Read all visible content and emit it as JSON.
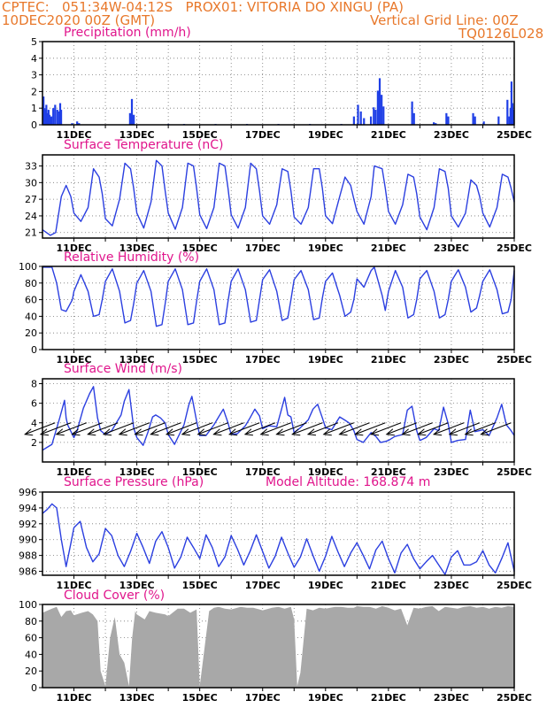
{
  "header": {
    "line1": "CPTEC:   051:34W-04:12S   PROX01: VITORIA DO XINGU (PA)",
    "line2": "10DEC2020 00Z (GMT)",
    "grid_note": "Vertical Grid Line: 00Z",
    "code": "TQ0126L028"
  },
  "colors": {
    "line": "#2b3fe0",
    "bar": "#1f3fe6",
    "cloud": "#a8a8a8",
    "title": "#e0158c",
    "header": "#e8782b"
  },
  "x_ticks": [
    "11DEC",
    "13DEC",
    "15DEC",
    "17DEC",
    "19DEC",
    "21DEC",
    "23DEC",
    "25DEC"
  ],
  "chart_data": [
    {
      "type": "bar",
      "title": "Precipitation (mm/h)",
      "ylim": [
        0,
        5
      ],
      "yticks": [
        "0",
        "1",
        "2",
        "3",
        "4",
        "5"
      ],
      "x_unit": "days since 10DEC 00Z",
      "points": [
        [
          0.03,
          1.7
        ],
        [
          0.06,
          1.0
        ],
        [
          0.09,
          0.9
        ],
        [
          0.12,
          1.2
        ],
        [
          0.16,
          0.7
        ],
        [
          0.19,
          0.9
        ],
        [
          0.22,
          0.6
        ],
        [
          0.28,
          0.5
        ],
        [
          0.34,
          1.0
        ],
        [
          0.4,
          1.2
        ],
        [
          0.47,
          0.9
        ],
        [
          0.53,
          0.8
        ],
        [
          0.56,
          1.3
        ],
        [
          0.59,
          0.9
        ],
        [
          0.94,
          0.1
        ],
        [
          1.1,
          0.2
        ],
        [
          1.16,
          0.1
        ],
        [
          2.78,
          0.7
        ],
        [
          2.84,
          1.55
        ],
        [
          2.9,
          0.6
        ],
        [
          4.0,
          0.05
        ],
        [
          4.5,
          0.05
        ],
        [
          5.5,
          0.05
        ],
        [
          6.5,
          0.05
        ],
        [
          7.5,
          0.05
        ],
        [
          8.5,
          0.05
        ],
        [
          9.5,
          0.05
        ],
        [
          9.9,
          0.5
        ],
        [
          10.03,
          1.2
        ],
        [
          10.12,
          0.8
        ],
        [
          10.22,
          0.4
        ],
        [
          10.44,
          0.5
        ],
        [
          10.53,
          1.05
        ],
        [
          10.59,
          0.9
        ],
        [
          10.66,
          2.05
        ],
        [
          10.72,
          2.8
        ],
        [
          10.78,
          1.8
        ],
        [
          10.84,
          1.1
        ],
        [
          11.75,
          1.4
        ],
        [
          11.81,
          0.7
        ],
        [
          12.44,
          0.15
        ],
        [
          12.5,
          0.1
        ],
        [
          12.84,
          0.7
        ],
        [
          12.9,
          0.5
        ],
        [
          13.69,
          0.7
        ],
        [
          13.75,
          0.5
        ],
        [
          14.03,
          0.2
        ],
        [
          14.5,
          0.5
        ],
        [
          14.78,
          1.5
        ],
        [
          14.84,
          0.5
        ],
        [
          14.88,
          1.0
        ],
        [
          14.91,
          2.6
        ],
        [
          14.94,
          1.3
        ],
        [
          14.97,
          0.9
        ]
      ]
    },
    {
      "type": "line",
      "title": "Surface Temperature (nC)",
      "ylim": [
        20,
        35
      ],
      "yticks": [
        "21",
        "24",
        "27",
        "30",
        "33"
      ],
      "x": [
        0,
        0.25,
        0.42,
        0.6,
        0.75,
        0.9,
        1.0,
        1.22,
        1.45,
        1.62,
        1.8,
        1.9,
        2.0,
        2.22,
        2.45,
        2.62,
        2.8,
        2.9,
        3.0,
        3.22,
        3.45,
        3.62,
        3.8,
        3.9,
        4.0,
        4.22,
        4.45,
        4.62,
        4.8,
        4.9,
        5.0,
        5.22,
        5.45,
        5.62,
        5.8,
        5.9,
        6.0,
        6.22,
        6.45,
        6.62,
        6.8,
        6.9,
        7.0,
        7.22,
        7.45,
        7.62,
        7.8,
        7.9,
        8.0,
        8.22,
        8.45,
        8.62,
        8.8,
        8.9,
        9.0,
        9.22,
        9.45,
        9.62,
        9.8,
        9.9,
        10.0,
        10.22,
        10.45,
        10.55,
        10.8,
        10.9,
        11.0,
        11.22,
        11.45,
        11.62,
        11.8,
        11.9,
        12.0,
        12.22,
        12.45,
        12.62,
        12.8,
        12.9,
        13.0,
        13.22,
        13.45,
        13.62,
        13.8,
        13.9,
        14.0,
        14.22,
        14.45,
        14.62,
        14.8,
        14.9,
        15.0
      ],
      "y": [
        21.5,
        20.5,
        21.0,
        27.5,
        29.5,
        27.5,
        24.5,
        23.0,
        25.5,
        32.5,
        31.0,
        28.0,
        23.5,
        22.2,
        27.0,
        33.5,
        32.5,
        29.0,
        24.5,
        21.8,
        26.5,
        34.0,
        33.0,
        28.5,
        24.5,
        21.6,
        25.5,
        33.5,
        33.0,
        29.0,
        24.2,
        21.7,
        25.5,
        33.5,
        33.0,
        29.0,
        24.2,
        21.8,
        25.5,
        33.5,
        32.5,
        28.5,
        24.0,
        22.5,
        26.0,
        32.5,
        32.0,
        28.5,
        23.8,
        22.5,
        25.5,
        32.5,
        32.5,
        29.0,
        24.0,
        22.6,
        27.5,
        31.0,
        29.5,
        27.0,
        24.8,
        22.5,
        27.5,
        33.0,
        32.5,
        29.0,
        24.8,
        22.5,
        26.0,
        31.5,
        31.0,
        28.0,
        23.8,
        21.5,
        25.5,
        32.5,
        32.0,
        29.0,
        24.0,
        22.0,
        24.5,
        30.5,
        29.5,
        27.5,
        24.5,
        22.0,
        25.5,
        31.5,
        31.0,
        29.0,
        26.5
      ]
    },
    {
      "type": "line",
      "title": "Relative Humidity (%)",
      "ylim": [
        0,
        100
      ],
      "yticks": [
        "0",
        "20",
        "40",
        "60",
        "80",
        "100"
      ],
      "x": [
        0,
        0.3,
        0.45,
        0.6,
        0.75,
        0.95,
        1.0,
        1.22,
        1.45,
        1.62,
        1.8,
        1.9,
        2.0,
        2.22,
        2.45,
        2.62,
        2.8,
        2.9,
        3.0,
        3.22,
        3.45,
        3.62,
        3.8,
        3.9,
        4.0,
        4.22,
        4.45,
        4.62,
        4.8,
        4.9,
        5.0,
        5.22,
        5.45,
        5.62,
        5.8,
        5.9,
        6.0,
        6.22,
        6.45,
        6.62,
        6.8,
        6.9,
        7.0,
        7.22,
        7.45,
        7.62,
        7.8,
        7.9,
        8.0,
        8.22,
        8.45,
        8.62,
        8.8,
        8.9,
        9.0,
        9.22,
        9.45,
        9.62,
        9.8,
        9.9,
        10.0,
        10.22,
        10.45,
        10.55,
        10.8,
        10.9,
        11.0,
        11.22,
        11.45,
        11.62,
        11.8,
        11.9,
        12.0,
        12.22,
        12.45,
        12.62,
        12.8,
        12.9,
        13.0,
        13.22,
        13.45,
        13.62,
        13.8,
        13.9,
        14.0,
        14.22,
        14.45,
        14.62,
        14.8,
        14.9,
        15.0
      ],
      "y": [
        99,
        99,
        80,
        48,
        46,
        60,
        70,
        90,
        70,
        40,
        42,
        60,
        82,
        97,
        70,
        32,
        35,
        55,
        80,
        95,
        70,
        28,
        30,
        55,
        82,
        97,
        72,
        30,
        32,
        58,
        82,
        97,
        72,
        30,
        32,
        58,
        82,
        97,
        72,
        33,
        35,
        60,
        84,
        96,
        70,
        35,
        38,
        60,
        84,
        95,
        72,
        36,
        38,
        62,
        82,
        92,
        65,
        40,
        45,
        60,
        85,
        75,
        95,
        99,
        65,
        47,
        70,
        95,
        75,
        38,
        42,
        60,
        85,
        95,
        70,
        38,
        42,
        60,
        82,
        96,
        75,
        45,
        50,
        65,
        82,
        96,
        72,
        43,
        45,
        60,
        95
      ]
    },
    {
      "type": "line",
      "title": "Surface Wind (m/s)",
      "ylim": [
        0,
        8.5
      ],
      "yticks": [
        "2",
        "4",
        "6",
        "8"
      ],
      "x": [
        0,
        0.15,
        0.3,
        0.55,
        0.7,
        0.75,
        0.8,
        1.0,
        1.1,
        1.3,
        1.5,
        1.62,
        1.75,
        1.85,
        2.0,
        2.2,
        2.5,
        2.6,
        2.75,
        2.9,
        3.0,
        3.2,
        3.35,
        3.5,
        3.6,
        3.75,
        3.9,
        4.0,
        4.2,
        4.5,
        4.65,
        4.75,
        4.9,
        5.0,
        5.2,
        5.45,
        5.6,
        5.75,
        5.9,
        6.0,
        6.2,
        6.45,
        6.6,
        6.75,
        6.9,
        7.0,
        7.2,
        7.45,
        7.6,
        7.7,
        7.8,
        7.9,
        8.0,
        8.2,
        8.45,
        8.6,
        8.75,
        8.9,
        9.0,
        9.2,
        9.45,
        9.6,
        9.75,
        9.9,
        10.0,
        10.2,
        10.45,
        10.6,
        10.75,
        10.9,
        11.0,
        11.2,
        11.45,
        11.6,
        11.75,
        11.9,
        12.0,
        12.2,
        12.45,
        12.6,
        12.75,
        12.9,
        13.0,
        13.2,
        13.45,
        13.6,
        13.75,
        13.9,
        14.0,
        14.2,
        14.45,
        14.6,
        14.7,
        14.75,
        14.9,
        15.0
      ],
      "y": [
        1.2,
        1.5,
        1.8,
        4.5,
        6.3,
        4.5,
        3.8,
        2.5,
        3.2,
        5.5,
        7.0,
        7.7,
        4.5,
        3.2,
        2.8,
        3.2,
        4.8,
        6.2,
        7.4,
        3.5,
        2.5,
        1.7,
        3.0,
        4.6,
        4.8,
        4.5,
        4.0,
        2.8,
        1.8,
        3.8,
        5.8,
        6.7,
        4.2,
        2.7,
        2.7,
        3.8,
        4.6,
        5.4,
        4.0,
        2.8,
        2.9,
        3.7,
        4.5,
        5.4,
        4.7,
        3.4,
        3.7,
        3.6,
        5.4,
        6.6,
        4.8,
        4.6,
        3.0,
        3.5,
        4.3,
        5.4,
        5.9,
        4.5,
        3.5,
        3.3,
        4.6,
        4.3,
        4.0,
        3.2,
        2.3,
        2.0,
        3.0,
        2.6,
        2.0,
        2.1,
        2.2,
        2.6,
        2.8,
        5.3,
        5.7,
        3.2,
        2.2,
        2.5,
        3.4,
        3.2,
        5.6,
        3.9,
        2.0,
        2.2,
        2.3,
        5.3,
        3.1,
        3.2,
        3.3,
        2.7,
        4.5,
        5.9,
        4.5,
        3.8,
        3.2,
        2.7
      ],
      "arrows_at": [
        0.4,
        0.9,
        1.4,
        1.9,
        2.4,
        2.9,
        3.4,
        3.9,
        4.4,
        4.9,
        5.4,
        5.9,
        6.4,
        6.9,
        7.4,
        7.9,
        8.4,
        8.9,
        9.4,
        9.9,
        10.4,
        10.9,
        11.4,
        11.9,
        12.4,
        12.9,
        13.4,
        13.9,
        14.4,
        14.9
      ]
    },
    {
      "type": "line",
      "title": "Surface Pressure (hPa)",
      "annotation": "Model Altitude: 168.874 m",
      "ylim": [
        985.5,
        996
      ],
      "yticks": [
        "986",
        "988",
        "990",
        "992",
        "994",
        "996"
      ],
      "x": [
        0,
        0.15,
        0.3,
        0.45,
        0.6,
        0.75,
        0.9,
        1.0,
        1.2,
        1.4,
        1.6,
        1.8,
        2.0,
        2.2,
        2.4,
        2.6,
        2.8,
        3.0,
        3.2,
        3.4,
        3.6,
        3.8,
        4.0,
        4.2,
        4.4,
        4.6,
        4.8,
        5.0,
        5.2,
        5.4,
        5.6,
        5.8,
        6.0,
        6.2,
        6.4,
        6.6,
        6.8,
        7.0,
        7.2,
        7.4,
        7.6,
        7.8,
        8.0,
        8.2,
        8.4,
        8.6,
        8.8,
        9.0,
        9.2,
        9.4,
        9.6,
        9.8,
        10.0,
        10.2,
        10.4,
        10.6,
        10.8,
        11.0,
        11.2,
        11.4,
        11.6,
        11.8,
        12.0,
        12.2,
        12.4,
        12.6,
        12.8,
        13.0,
        13.2,
        13.4,
        13.6,
        13.8,
        14.0,
        14.2,
        14.4,
        14.6,
        14.8,
        15.0
      ],
      "y": [
        993.3,
        993.8,
        994.5,
        994.0,
        990.0,
        986.6,
        989.5,
        991.5,
        992.3,
        989.0,
        987.2,
        988.2,
        991.4,
        990.5,
        988.0,
        986.6,
        988.5,
        990.8,
        989.0,
        987.0,
        989.8,
        991.0,
        989.0,
        986.4,
        987.8,
        990.3,
        989.0,
        987.6,
        990.6,
        989.0,
        986.6,
        987.8,
        990.5,
        988.8,
        986.8,
        988.5,
        990.6,
        988.5,
        986.4,
        987.9,
        990.3,
        988.3,
        986.5,
        987.8,
        990.1,
        988.0,
        986.0,
        987.9,
        990.4,
        988.4,
        986.6,
        988.3,
        989.6,
        988.0,
        986.3,
        988.7,
        989.8,
        987.6,
        985.8,
        988.3,
        989.4,
        987.6,
        986.3,
        987.2,
        988.0,
        986.8,
        985.6,
        987.8,
        988.6,
        986.8,
        986.8,
        987.2,
        988.6,
        986.8,
        985.8,
        987.6,
        989.6,
        986.0
      ]
    },
    {
      "type": "area",
      "title": "Cloud Cover (%)",
      "ylim": [
        0,
        100
      ],
      "yticks": [
        "0",
        "20",
        "40",
        "60",
        "80",
        "100"
      ],
      "x": [
        0,
        0.3,
        0.45,
        0.6,
        0.75,
        0.9,
        1.0,
        1.25,
        1.45,
        1.6,
        1.75,
        1.85,
        2.0,
        2.15,
        2.3,
        2.45,
        2.6,
        2.75,
        2.85,
        2.95,
        3.0,
        3.25,
        3.4,
        3.6,
        3.9,
        4.0,
        4.3,
        4.5,
        4.7,
        4.9,
        5.0,
        5.3,
        5.45,
        5.6,
        5.8,
        6.0,
        6.3,
        6.5,
        6.7,
        6.9,
        7.0,
        7.3,
        7.5,
        7.7,
        7.9,
        8.0,
        8.1,
        8.2,
        8.4,
        8.6,
        8.8,
        9.0,
        9.3,
        9.5,
        9.7,
        9.9,
        10.0,
        10.2,
        10.4,
        10.6,
        10.8,
        11.0,
        11.2,
        11.4,
        11.6,
        11.8,
        12.0,
        12.2,
        12.4,
        12.6,
        12.8,
        13.0,
        13.2,
        13.4,
        13.6,
        13.8,
        14.0,
        14.2,
        14.4,
        14.6,
        14.8,
        15.0
      ],
      "y": [
        90,
        95,
        97,
        85,
        92,
        93,
        87,
        90,
        92,
        88,
        80,
        20,
        2,
        60,
        85,
        40,
        30,
        2,
        60,
        92,
        88,
        82,
        92,
        90,
        88,
        86,
        95,
        95,
        90,
        94,
        2,
        92,
        96,
        97,
        95,
        94,
        97,
        96,
        96,
        94,
        93,
        96,
        97,
        95,
        97,
        82,
        2,
        18,
        95,
        93,
        96,
        95,
        97,
        97,
        96,
        96,
        98,
        97,
        97,
        95,
        98,
        96,
        93,
        95,
        75,
        96,
        95,
        97,
        98,
        92,
        97,
        96,
        95,
        97,
        98,
        96,
        97,
        95,
        97,
        96,
        98,
        97
      ]
    }
  ]
}
